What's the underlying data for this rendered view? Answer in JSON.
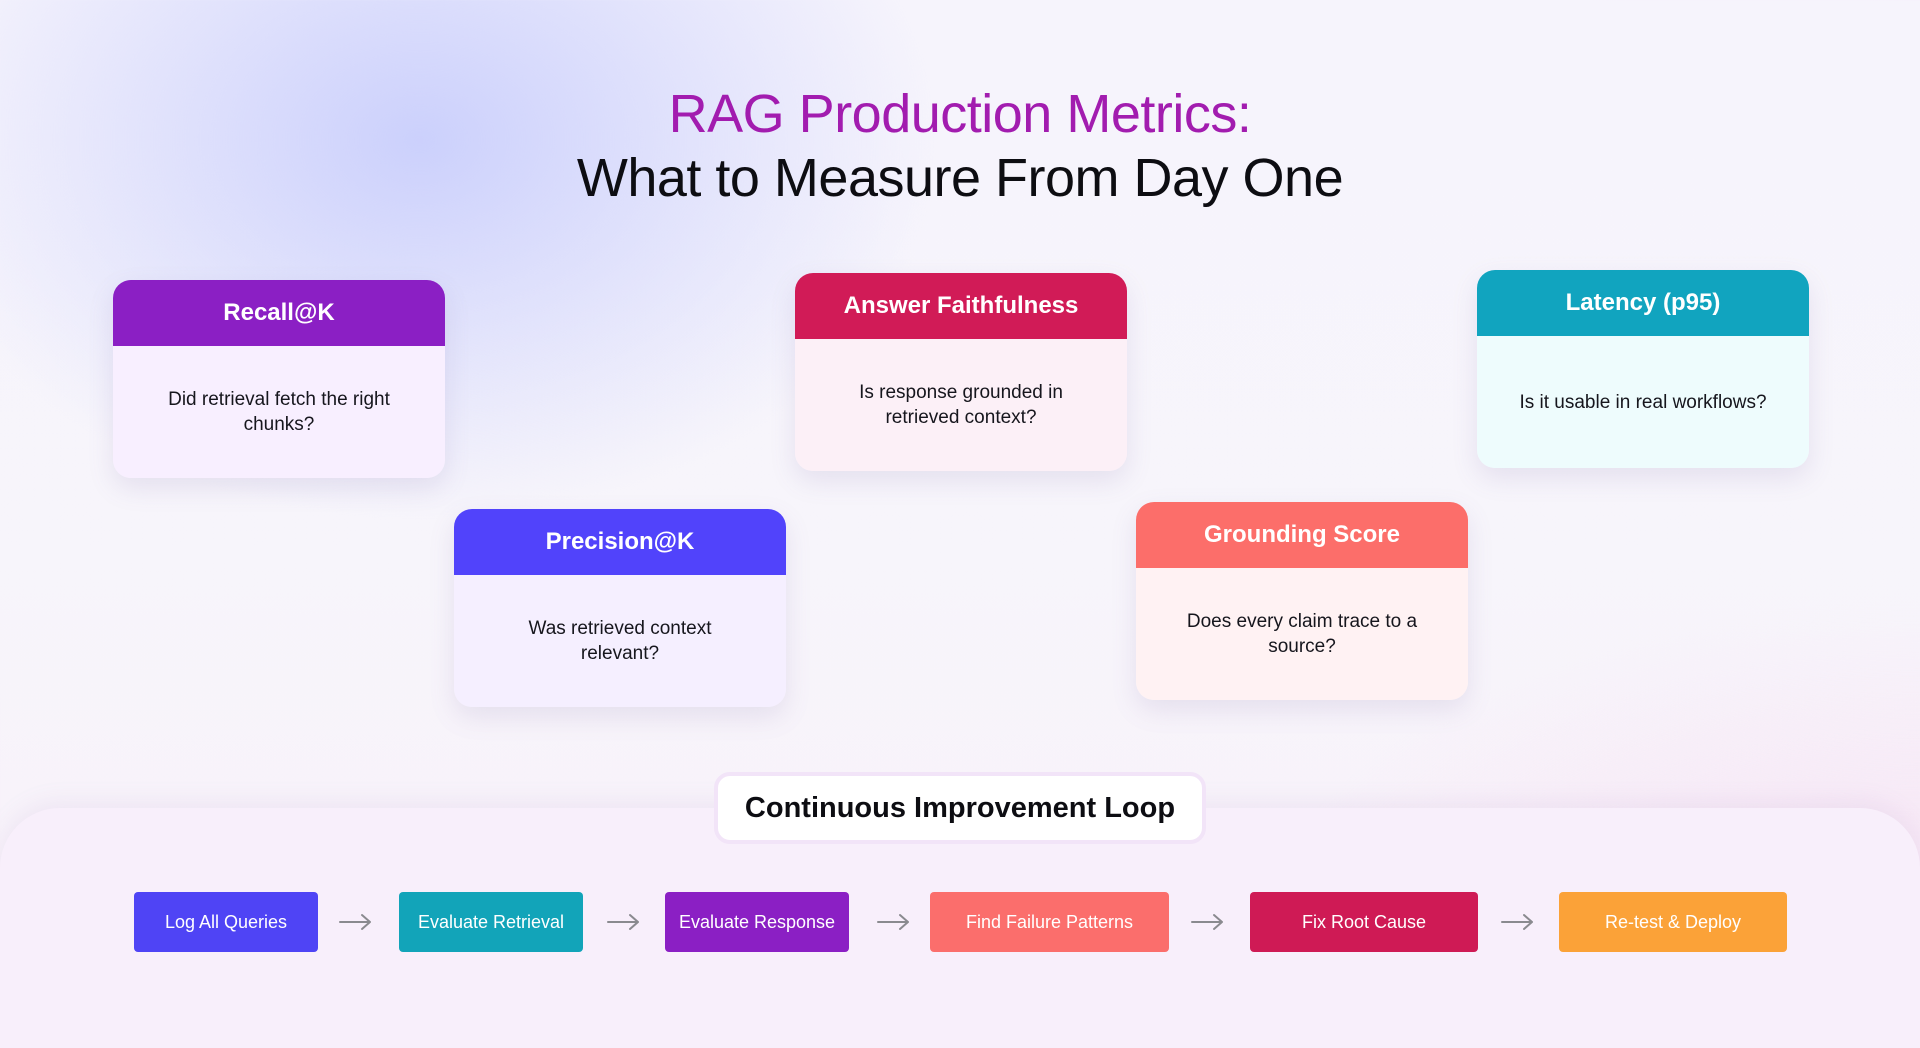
{
  "title": {
    "line1": "RAG Production Metrics:",
    "line2": "What to Measure From Day One"
  },
  "metrics": [
    {
      "title": "Recall@K",
      "question": "Did retrieval fetch the right chunks?",
      "color": "#8b1fc4"
    },
    {
      "title": "Precision@K",
      "question": "Was retrieved context relevant?",
      "color": "#5143fb"
    },
    {
      "title": "Answer Faithfulness",
      "question": "Is response grounded in retrieved context?",
      "color": "#d11b57"
    },
    {
      "title": "Grounding Score",
      "question": "Does every claim trace to a source?",
      "color": "#fc6e6a"
    },
    {
      "title": "Latency (p95)",
      "question": "Is it usable in real workflows?",
      "color": "#11a4bf"
    }
  ],
  "loop": {
    "title": "Continuous Improvement Loop",
    "steps": [
      {
        "label": "Log All Queries",
        "color": "#4f44f5"
      },
      {
        "label": "Evaluate Retrieval",
        "color": "#12a4b9"
      },
      {
        "label": "Evaluate Response",
        "color": "#8b1fc4"
      },
      {
        "label": "Find Failure Patterns",
        "color": "#fb6e6c"
      },
      {
        "label": "Fix Root Cause",
        "color": "#cf1a55"
      },
      {
        "label": "Re-test & Deploy",
        "color": "#fba238"
      }
    ],
    "arrow_icon": "right-arrow-icon"
  }
}
